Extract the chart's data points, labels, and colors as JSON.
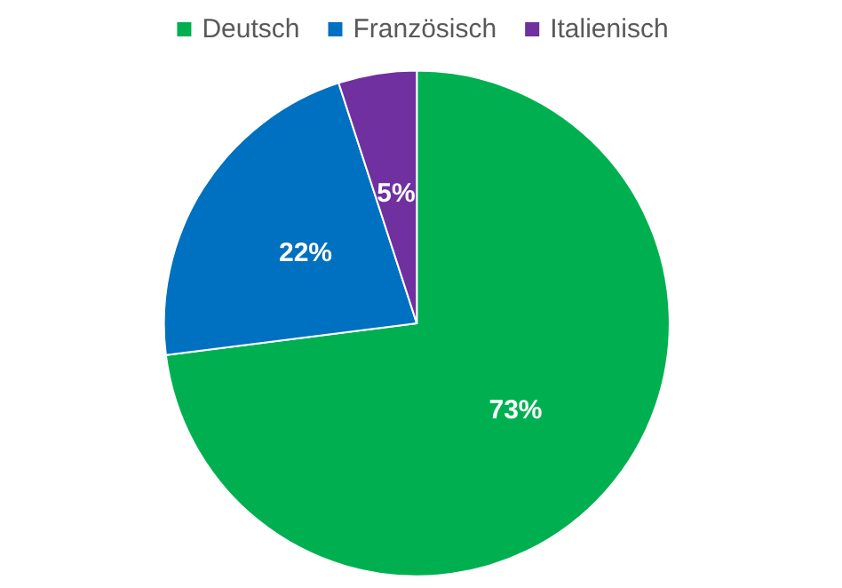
{
  "chart_data": {
    "type": "pie",
    "categories": [
      "Deutsch",
      "Französisch",
      "Italienisch"
    ],
    "values": [
      73,
      22,
      5
    ],
    "colors": [
      "#00b050",
      "#0070c0",
      "#7030a0"
    ],
    "value_labels": [
      "73%",
      "22%",
      "5%"
    ],
    "legend": "top"
  }
}
